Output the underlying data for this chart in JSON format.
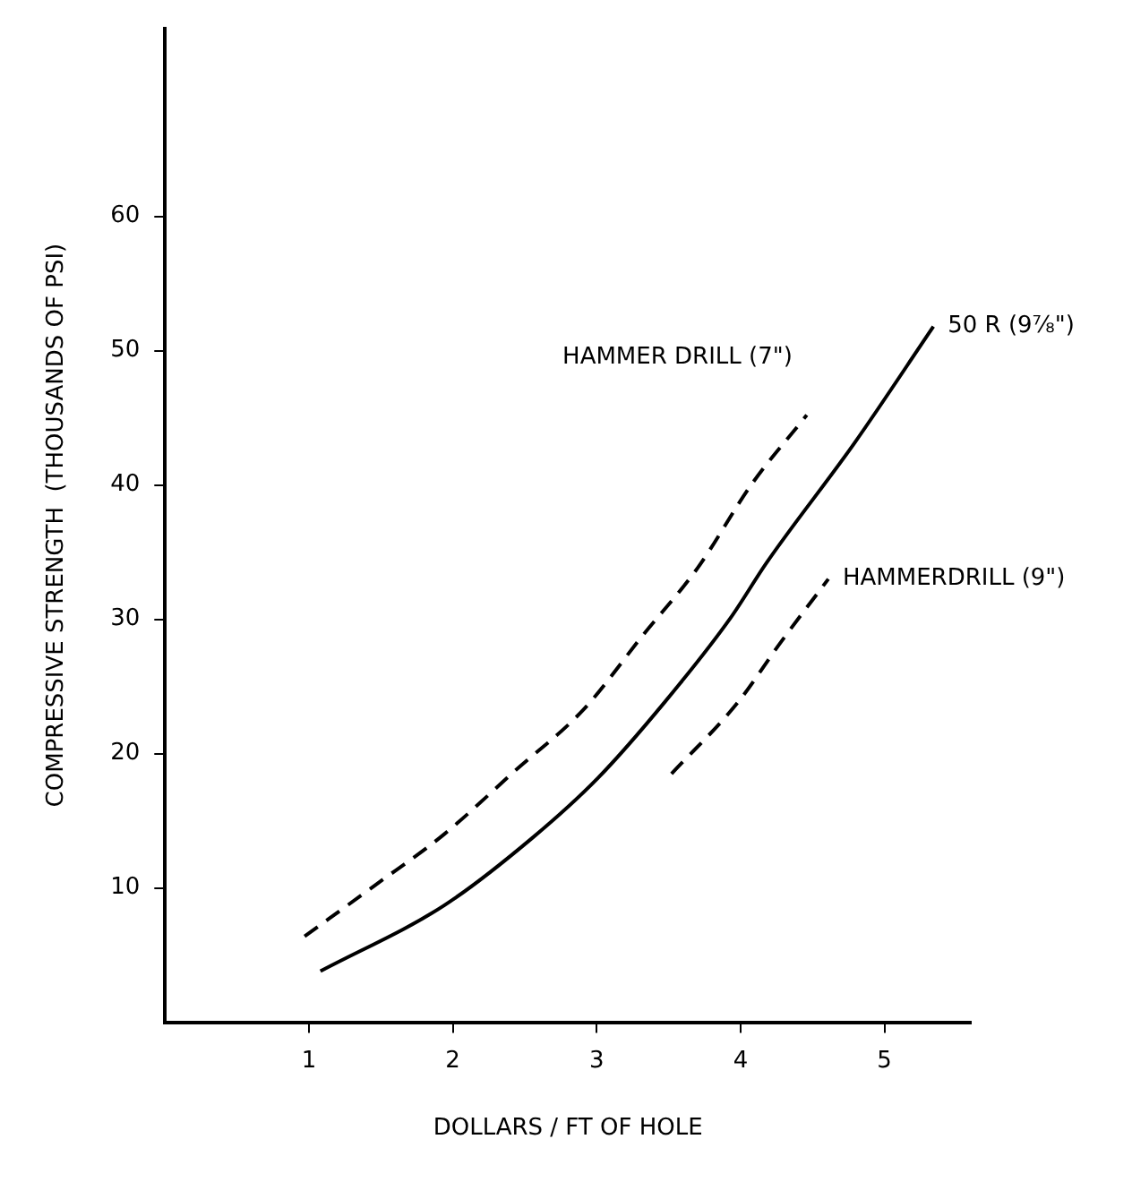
{
  "chart_data": {
    "type": "line",
    "xlabel": "DOLLARS / FT OF HOLE",
    "ylabel": "COMPRESSIVE STRENGTH  (THOUSANDS OF PSI)",
    "xlim": [
      0,
      5.6
    ],
    "ylim": [
      0,
      74
    ],
    "xticks": [
      1,
      2,
      3,
      4,
      5
    ],
    "yticks": [
      10,
      20,
      30,
      40,
      50,
      60
    ],
    "grid": false,
    "legend": false,
    "marker": "none",
    "series": [
      {
        "name": "HAMMER DRILL (7\")",
        "color": "#000000",
        "line_style": "dashed",
        "x": [
          0.97,
          1.46,
          1.94,
          2.43,
          2.91,
          3.32,
          3.7,
          4.08,
          4.46
        ],
        "values": [
          6.4,
          10.2,
          14.0,
          18.7,
          23.3,
          28.8,
          33.8,
          40.1,
          45.2
        ]
      },
      {
        "name": "50 R (9⅞\")",
        "color": "#000000",
        "line_style": "solid",
        "x": [
          1.08,
          1.94,
          2.55,
          3.01,
          3.47,
          3.93,
          4.18,
          4.79,
          5.34
        ],
        "values": [
          3.8,
          8.7,
          13.7,
          18.2,
          23.8,
          30.1,
          34.2,
          43.1,
          51.8
        ]
      },
      {
        "name": "HAMMERDRILL (9\")",
        "color": "#000000",
        "line_style": "dashed",
        "x": [
          3.52,
          3.98,
          4.28,
          4.61
        ],
        "values": [
          18.5,
          23.8,
          28.3,
          33.0
        ]
      }
    ]
  }
}
